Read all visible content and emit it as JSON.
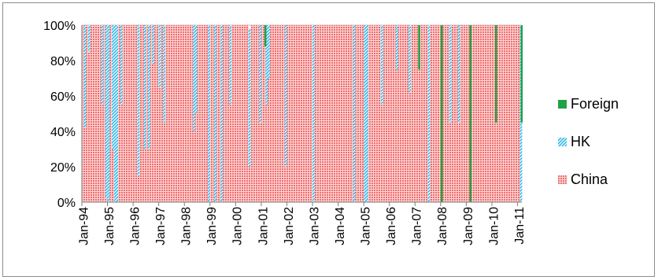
{
  "chart_data": {
    "type": "bar",
    "stacked": "percent",
    "frequency": "monthly",
    "y_axis": {
      "ylim": [
        0,
        100
      ],
      "ticks": [
        0,
        20,
        40,
        60,
        80,
        100
      ],
      "tick_labels": [
        "0%",
        "20%",
        "40%",
        "60%",
        "80%",
        "100%"
      ]
    },
    "x_axis": {
      "tick_labels": [
        "Jan-94",
        "Jan-95",
        "Jan-96",
        "Jan-97",
        "Jan-98",
        "Jan-99",
        "Jan-00",
        "Jan-01",
        "Jan-02",
        "Jan-03",
        "Jan-04",
        "Jan-05",
        "Jan-06",
        "Jan-07",
        "Jan-08",
        "Jan-09",
        "Jan-10",
        "Jan-11"
      ]
    },
    "legend": {
      "position": "right",
      "entries": [
        "Foreign",
        "HK",
        "China"
      ]
    },
    "colors": {
      "Foreign": "#1fa245",
      "HK": "#33b8ea",
      "China": "#f26b6b"
    },
    "grid": "horizontal",
    "series": [
      {
        "name": "China",
        "values": [
          100,
          42,
          100,
          85,
          100,
          100,
          100,
          100,
          100,
          55,
          100,
          2,
          0,
          100,
          30,
          0,
          0,
          100,
          55,
          100,
          100,
          100,
          100,
          100,
          100,
          100,
          15,
          100,
          100,
          30,
          100,
          30,
          100,
          78,
          100,
          100,
          65,
          100,
          45,
          100,
          100,
          100,
          100,
          100,
          100,
          100,
          100,
          100,
          100,
          100,
          100,
          100,
          40,
          50,
          100,
          100,
          100,
          100,
          100,
          0,
          100,
          100,
          0,
          100,
          100,
          0,
          100,
          100,
          100,
          55,
          100,
          100,
          100,
          100,
          100,
          100,
          100,
          100,
          20,
          100,
          100,
          100,
          100,
          45,
          100,
          100,
          55,
          70,
          100,
          100,
          100,
          100,
          100,
          100,
          100,
          20,
          100,
          100,
          100,
          100,
          100,
          100,
          100,
          100,
          100,
          100,
          100,
          100,
          0,
          100,
          100,
          100,
          100,
          100,
          100,
          100,
          100,
          100,
          100,
          100,
          100,
          100,
          100,
          100,
          100,
          100,
          100,
          0,
          100,
          100,
          100,
          100,
          0,
          0,
          100,
          100,
          100,
          100,
          100,
          100,
          55,
          100,
          100,
          100,
          100,
          100,
          100,
          75,
          100,
          100,
          100,
          100,
          100,
          62,
          100,
          100,
          100,
          100,
          100,
          100,
          100,
          100,
          0,
          100,
          100,
          100,
          100,
          100,
          0,
          100,
          100,
          100,
          45,
          100,
          100,
          100,
          45,
          100,
          100,
          100,
          100,
          100,
          100,
          100,
          100,
          100,
          100,
          100,
          100,
          100,
          100,
          100,
          100,
          100,
          100,
          100,
          100,
          100,
          100,
          100,
          100,
          100,
          100,
          100,
          100,
          0
        ]
      },
      {
        "name": "HK",
        "values": [
          0,
          58,
          0,
          15,
          0,
          0,
          0,
          0,
          0,
          45,
          0,
          98,
          100,
          0,
          70,
          100,
          100,
          0,
          45,
          0,
          0,
          0,
          0,
          0,
          0,
          0,
          85,
          0,
          0,
          70,
          0,
          70,
          0,
          22,
          0,
          0,
          35,
          0,
          55,
          0,
          0,
          0,
          0,
          0,
          0,
          0,
          0,
          0,
          0,
          0,
          0,
          0,
          60,
          50,
          0,
          0,
          0,
          0,
          0,
          100,
          0,
          0,
          100,
          0,
          0,
          100,
          0,
          0,
          0,
          45,
          0,
          0,
          0,
          0,
          0,
          0,
          0,
          0,
          78,
          0,
          0,
          0,
          0,
          55,
          0,
          0,
          45,
          30,
          0,
          0,
          0,
          0,
          0,
          0,
          0,
          80,
          0,
          0,
          0,
          0,
          0,
          0,
          0,
          0,
          0,
          0,
          0,
          0,
          100,
          0,
          0,
          0,
          0,
          0,
          0,
          0,
          0,
          0,
          0,
          0,
          0,
          0,
          0,
          0,
          0,
          0,
          0,
          100,
          0,
          0,
          0,
          0,
          100,
          100,
          0,
          0,
          0,
          0,
          0,
          0,
          45,
          0,
          0,
          0,
          0,
          0,
          0,
          25,
          0,
          0,
          0,
          0,
          0,
          38,
          0,
          0,
          0,
          0,
          0,
          0,
          0,
          0,
          100,
          0,
          0,
          0,
          0,
          0,
          0,
          0,
          0,
          0,
          55,
          0,
          0,
          0,
          55,
          0,
          0,
          0,
          0,
          0,
          0,
          0,
          0,
          0,
          0,
          0,
          0,
          0,
          0,
          0,
          0,
          0,
          0,
          0,
          0,
          0,
          0,
          0,
          0,
          0,
          0,
          0,
          0,
          100
        ]
      },
      {
        "name": "Foreign",
        "values": [
          0,
          0,
          0,
          0,
          0,
          0,
          0,
          0,
          0,
          0,
          0,
          0,
          0,
          0,
          0,
          0,
          0,
          0,
          0,
          0,
          0,
          0,
          0,
          0,
          0,
          0,
          0,
          0,
          0,
          0,
          0,
          0,
          0,
          0,
          0,
          0,
          0,
          0,
          0,
          0,
          0,
          0,
          0,
          0,
          0,
          0,
          0,
          0,
          0,
          0,
          0,
          0,
          0,
          0,
          0,
          0,
          0,
          0,
          0,
          0,
          0,
          0,
          0,
          0,
          0,
          0,
          0,
          0,
          0,
          0,
          0,
          0,
          0,
          0,
          0,
          0,
          0,
          0,
          0,
          0,
          0,
          0,
          0,
          0,
          0,
          0,
          0,
          0,
          0,
          0,
          0,
          0,
          0,
          0,
          0,
          0,
          0,
          0,
          0,
          0,
          0,
          0,
          0,
          0,
          0,
          0,
          0,
          0,
          0,
          0,
          0,
          0,
          0,
          0,
          0,
          0,
          0,
          0,
          0,
          0,
          0,
          0,
          0,
          0,
          0,
          0,
          0,
          0,
          0,
          0,
          0,
          0,
          0,
          0,
          0,
          0,
          0,
          0,
          0,
          0,
          0,
          0,
          0,
          0,
          0,
          0,
          0,
          0,
          0,
          0,
          0,
          0,
          0,
          0,
          0,
          0,
          0,
          0,
          0,
          0,
          0,
          0,
          0,
          0,
          0,
          0,
          0,
          0,
          100,
          0,
          0,
          0,
          0,
          0,
          0,
          0,
          0,
          0,
          0,
          0,
          0,
          0,
          0,
          0,
          0,
          0,
          0,
          0,
          0,
          0,
          0,
          0,
          0,
          0,
          0,
          0,
          0,
          0,
          0,
          0,
          0,
          0,
          0,
          0,
          0,
          0
        ]
      }
    ],
    "foreign_notes": {
      "Jan-01": 12,
      "Jan-07": 25,
      "Jan-09": 100,
      "Jan-10": 55,
      "Jan-11": 55
    }
  }
}
